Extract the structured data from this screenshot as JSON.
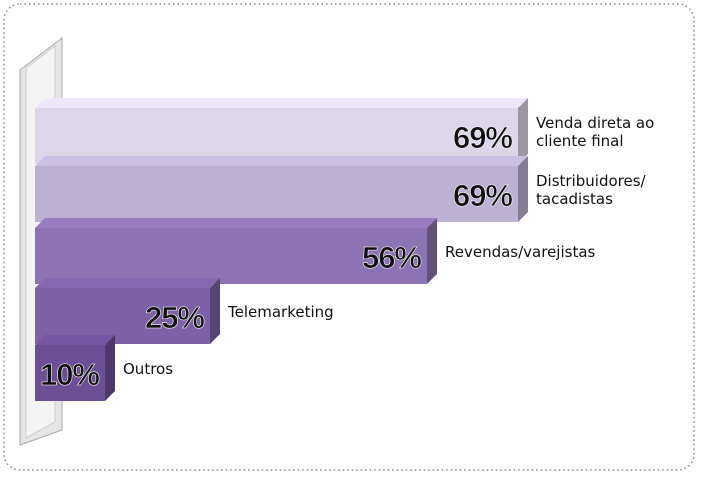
{
  "chart_data": {
    "type": "bar3d",
    "categories": [
      "Venda direta ao cliente final",
      "Distribuidores/ tacadistas",
      "Revendas/varejistas",
      "Telemarketing",
      "Outros"
    ],
    "values": [
      69,
      69,
      56,
      25,
      10
    ],
    "value_labels": [
      "69%",
      "69%",
      "56%",
      "25%",
      "10%"
    ],
    "colors": [
      "#dcd6e8",
      "#bcb1d3",
      "#8c73b3",
      "#7c61a6",
      "#6c5096"
    ]
  }
}
